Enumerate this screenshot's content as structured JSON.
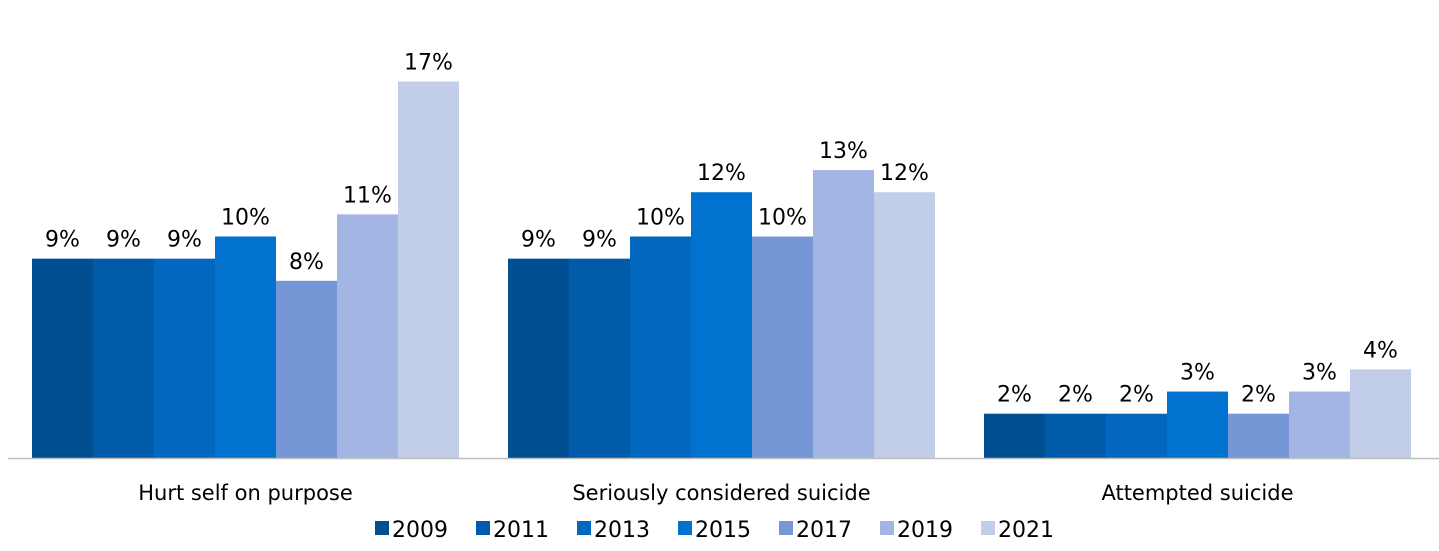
{
  "chart_data": {
    "type": "bar",
    "title": "",
    "xlabel": "",
    "ylabel": "",
    "ylim": [
      0,
      17
    ],
    "grid": false,
    "legend_position": "bottom",
    "categories": [
      "Hurt self on purpose",
      "Seriously considered suicide",
      "Attempted suicide"
    ],
    "series": [
      {
        "name": "2009",
        "color": "#004f93",
        "values": [
          9,
          9,
          2
        ],
        "labels": [
          "9%",
          "9%",
          "2%"
        ]
      },
      {
        "name": "2011",
        "color": "#005bab",
        "values": [
          9,
          9,
          2
        ],
        "labels": [
          "9%",
          "9%",
          "2%"
        ]
      },
      {
        "name": "2013",
        "color": "#0267bf",
        "values": [
          9,
          10,
          2
        ],
        "labels": [
          "9%",
          "10%",
          "2%"
        ]
      },
      {
        "name": "2015",
        "color": "#0172cf",
        "values": [
          10,
          12,
          3
        ],
        "labels": [
          "10%",
          "12%",
          "3%"
        ]
      },
      {
        "name": "2017",
        "color": "#7597d6",
        "values": [
          8,
          10,
          2
        ],
        "labels": [
          "8%",
          "10%",
          "2%"
        ]
      },
      {
        "name": "2019",
        "color": "#a3b5e2",
        "values": [
          11,
          13,
          3
        ],
        "labels": [
          "11%",
          "13%",
          "3%"
        ]
      },
      {
        "name": "2021",
        "color": "#c1cde9",
        "values": [
          17,
          12,
          4
        ],
        "labels": [
          "17%",
          "12%",
          "4%"
        ]
      }
    ]
  }
}
